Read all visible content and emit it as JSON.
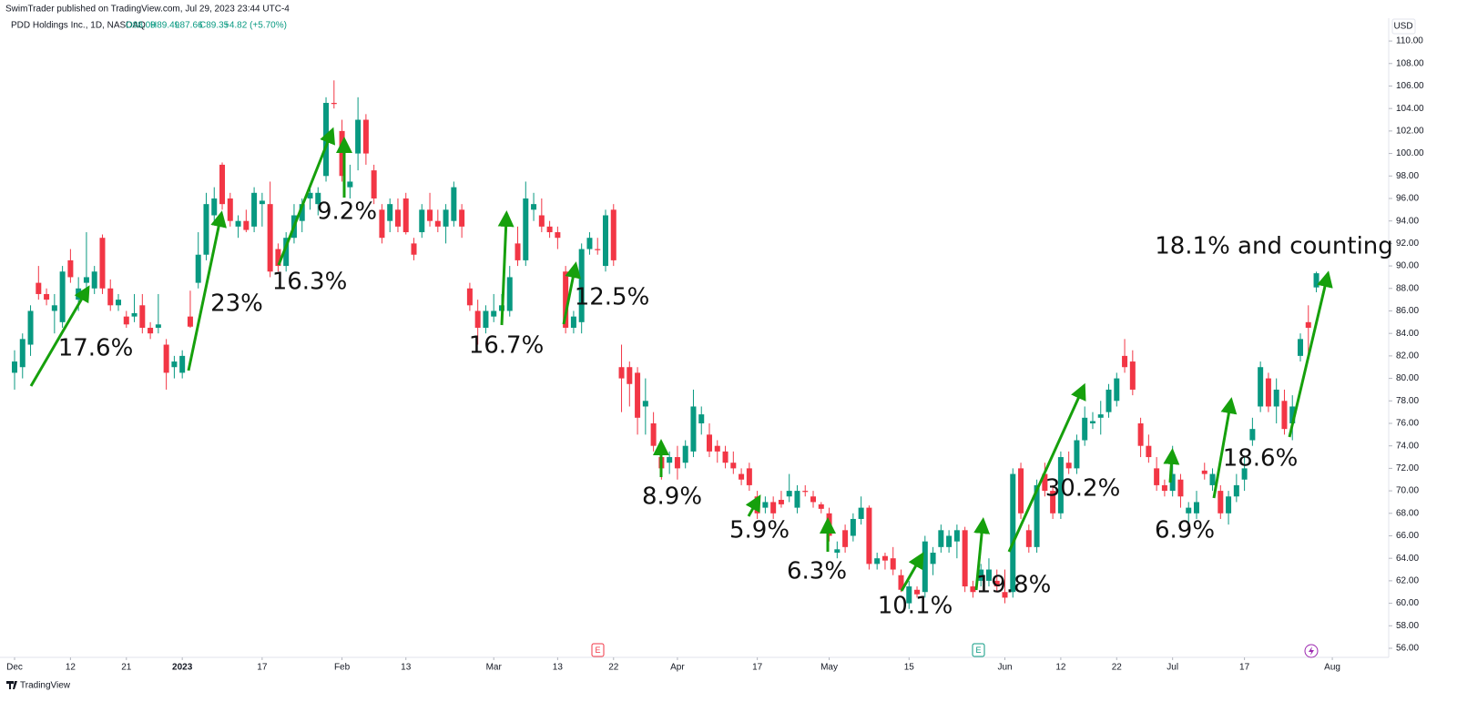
{
  "header": {
    "publisher": "SwimTrader published on TradingView.com, Jul 29, 2023 23:44 UTC-4",
    "symbol": "PDD Holdings Inc., 1D, NASDAQ",
    "quote": [
      "O88.09",
      "H89.49",
      "L87.66",
      "C89.35",
      "+4.82 (+5.70%)"
    ],
    "currency": "USD",
    "footer": "TradingView"
  },
  "chart_data": {
    "type": "candlestick",
    "up_color": "#089981",
    "down_color": "#f23645",
    "open": [
      80.5,
      81,
      83,
      88.5,
      87.5,
      86,
      85,
      90.5,
      87,
      88.5,
      88,
      92.5,
      88,
      86.5,
      85.5,
      85.5,
      86.5,
      84.5,
      84.5,
      83,
      81,
      80.5,
      85.5,
      88.5,
      91,
      94.5,
      99,
      96,
      93.5,
      94,
      93.5,
      95.5,
      95.5,
      91.5,
      90,
      92.5,
      94,
      96,
      95.5,
      98,
      104.5,
      102,
      97,
      100,
      103,
      98.5,
      95,
      94,
      95,
      96,
      92,
      93,
      95,
      94,
      93.5,
      94,
      95,
      88,
      86,
      84.5,
      85.5,
      86,
      86,
      92,
      90.5,
      95,
      94.5,
      93.5,
      93,
      89.5,
      84.5,
      85,
      91.5,
      91.5,
      90,
      95,
      81,
      81,
      80.5,
      77.5,
      76,
      73,
      72.5,
      73,
      72.5,
      73.5,
      76,
      75,
      74,
      73.5,
      72.5,
      71.5,
      72,
      69.5,
      68.5,
      69,
      69.2,
      69.5,
      68.5,
      70,
      69.5,
      68.8,
      68,
      64.5,
      66.5,
      66,
      67.5,
      68.5,
      63.5,
      64.2,
      64,
      62.5,
      60,
      61.2,
      61,
      63.5,
      65,
      65,
      65.5,
      66.5,
      61.5,
      62,
      62,
      62,
      61,
      61,
      72,
      66.5,
      65,
      71.5,
      70,
      68,
      72.5,
      72,
      74.5,
      76,
      76.5,
      77,
      78,
      82,
      81.5,
      76,
      74,
      72,
      70.5,
      70,
      71,
      68,
      68,
      71.8,
      70.5,
      70,
      68,
      69.5,
      71,
      74.5,
      77.5,
      80,
      77.5,
      78,
      76,
      82,
      85,
      88.09
    ],
    "high": [
      82.5,
      84,
      86.5,
      90,
      88,
      87.5,
      90,
      91.5,
      89,
      93,
      90,
      92.8,
      88.8,
      87.5,
      86,
      87.5,
      87.5,
      85,
      87.5,
      83.5,
      82,
      82.5,
      87.8,
      93,
      96.5,
      97,
      99.2,
      96.5,
      94.5,
      95,
      97,
      96.5,
      97.5,
      92,
      93,
      95.5,
      96,
      97,
      97,
      105,
      106.5,
      103,
      99,
      105,
      103.5,
      99,
      95.5,
      96,
      96,
      96.5,
      92.5,
      95.5,
      96.5,
      95,
      95.5,
      97.5,
      95.5,
      88.5,
      87,
      86.5,
      87.5,
      87.5,
      90,
      93.5,
      97.5,
      96.5,
      96,
      94,
      93.5,
      90,
      86,
      92,
      93,
      92.5,
      95,
      95.5,
      83,
      81.5,
      81,
      80,
      77,
      73.5,
      73.5,
      74,
      74.5,
      79,
      77.5,
      76,
      74.5,
      74,
      73.5,
      72,
      72.5,
      70,
      69.5,
      69.5,
      70,
      71.5,
      70.5,
      70.5,
      70,
      69,
      68.5,
      65.5,
      67,
      68,
      69.5,
      68.7,
      64.5,
      64.5,
      65,
      63,
      62,
      61.5,
      66,
      65,
      67,
      66.5,
      67,
      66.8,
      62,
      63.5,
      64,
      63,
      63,
      72,
      72.5,
      67,
      71,
      72.5,
      70.5,
      73.5,
      73.5,
      75,
      77.5,
      77,
      78,
      79.5,
      80.5,
      83.5,
      82.5,
      76.5,
      75,
      73,
      71,
      74,
      71.5,
      69,
      70,
      72.5,
      72,
      70.5,
      70,
      71.5,
      73,
      76.5,
      81.5,
      80.5,
      80,
      79,
      78.5,
      84,
      86.5,
      89.49
    ],
    "low": [
      79,
      80,
      82,
      87,
      86.5,
      84,
      84.5,
      88.5,
      86,
      87.5,
      87.5,
      87.5,
      86,
      86,
      84.5,
      85,
      84,
      83.5,
      84,
      79,
      80,
      80,
      84.5,
      88,
      90.5,
      94,
      95,
      93.5,
      92.5,
      93,
      93,
      93.5,
      89,
      89.5,
      89.5,
      92,
      93,
      95,
      94.5,
      97.5,
      104,
      97.5,
      96,
      98.5,
      99,
      95.5,
      92,
      93,
      93,
      92.8,
      90.5,
      92.5,
      93.5,
      93,
      92,
      93.5,
      92.5,
      86,
      83,
      84,
      85,
      85.5,
      85.5,
      90,
      90,
      94,
      93,
      92.5,
      91.5,
      84,
      84,
      84,
      91,
      91,
      89.5,
      90,
      77,
      77.5,
      75,
      75,
      73.5,
      71,
      71.5,
      71,
      72,
      73,
      75,
      73,
      72.5,
      72,
      71.5,
      70.5,
      70,
      67.5,
      68,
      67.5,
      68.5,
      69,
      68,
      69.5,
      68.5,
      68,
      65.5,
      64,
      64.5,
      65.5,
      67,
      63,
      63,
      63,
      62.5,
      61,
      59.5,
      60.5,
      60.5,
      62.5,
      64.5,
      64.5,
      64,
      61,
      60.5,
      61.5,
      61.5,
      61,
      60,
      60.5,
      67.5,
      64.5,
      64.5,
      69.5,
      67.5,
      67.5,
      71.5,
      71.5,
      74,
      75.5,
      75,
      76.5,
      77.5,
      80.5,
      78.5,
      73,
      72.5,
      70,
      69.5,
      69.5,
      68.5,
      66.5,
      67.5,
      71,
      70,
      67.5,
      67,
      69,
      70,
      74,
      77,
      77,
      76,
      75,
      74.5,
      81.5,
      82,
      87.66
    ],
    "close": [
      81.5,
      83.5,
      86,
      87.5,
      87,
      86.5,
      89.5,
      89,
      88,
      89,
      89.5,
      88,
      86.5,
      87,
      84.8,
      85.8,
      84.5,
      84,
      84.8,
      80.5,
      81.5,
      82,
      84.6,
      91,
      95.5,
      96,
      95.5,
      94,
      94,
      93.2,
      96.5,
      95.8,
      89.5,
      90,
      92.5,
      94.5,
      95.5,
      96.5,
      96.5,
      104.5,
      104.4,
      98,
      97.5,
      103,
      100,
      96,
      92.5,
      95.5,
      93.5,
      93,
      91,
      95,
      94,
      93.5,
      95,
      97,
      93.5,
      86.5,
      84.5,
      86,
      86,
      86.5,
      89,
      90.5,
      96,
      95.5,
      93.5,
      93,
      92.5,
      84.5,
      85.5,
      91.5,
      92.5,
      91.4,
      94.5,
      90.5,
      80,
      79.5,
      76.5,
      78,
      74,
      72,
      73,
      72,
      74,
      77.5,
      76.8,
      73.5,
      73.5,
      72.5,
      72,
      71,
      70.5,
      68,
      69,
      68,
      68.8,
      70,
      70,
      69.9,
      69,
      68.4,
      66,
      64.8,
      65,
      67.5,
      68.5,
      63.5,
      64,
      63.8,
      63,
      61.2,
      61.5,
      60.8,
      65.5,
      64.5,
      66.5,
      66,
      66.5,
      61.5,
      61,
      63,
      63,
      61.5,
      60.5,
      71.5,
      68,
      65,
      70.5,
      70,
      68,
      73,
      72,
      74.5,
      76.5,
      76.2,
      76.8,
      79,
      80,
      81,
      79,
      74,
      73,
      70.5,
      70,
      71.5,
      69.5,
      68.5,
      69,
      71.5,
      71.5,
      68,
      69.5,
      70.5,
      72,
      75.5,
      81,
      77.5,
      79,
      75.5,
      77.5,
      83.5,
      84.5,
      89.35
    ],
    "xlim": [
      -1.824,
      172.06
    ],
    "xticks": [
      {
        "value": 0,
        "label": "Dec"
      },
      {
        "value": 7,
        "label": "12"
      },
      {
        "value": 14,
        "label": "21"
      },
      {
        "value": 21,
        "label": "2023"
      },
      {
        "value": 31,
        "label": "17"
      },
      {
        "value": 41,
        "label": "Feb"
      },
      {
        "value": 49,
        "label": "13"
      },
      {
        "value": 60,
        "label": "Mar"
      },
      {
        "value": 68,
        "label": "13"
      },
      {
        "value": 75,
        "label": "22"
      },
      {
        "value": 83,
        "label": "Apr"
      },
      {
        "value": 93,
        "label": "17"
      },
      {
        "value": 102,
        "label": "May"
      },
      {
        "value": 112,
        "label": "15"
      },
      {
        "value": 124,
        "label": "Jun"
      },
      {
        "value": 131,
        "label": "12"
      },
      {
        "value": 138,
        "label": "22"
      },
      {
        "value": 145,
        "label": "Jul"
      },
      {
        "value": 154,
        "label": "17"
      },
      {
        "value": 165,
        "label": "Aug"
      }
    ],
    "ylim": [
      55.19,
      112.03
    ],
    "yticks": [
      {
        "value": 56,
        "label": "56.00"
      },
      {
        "value": 58,
        "label": "58.00"
      },
      {
        "value": 60,
        "label": "60.00"
      },
      {
        "value": 62,
        "label": "62.00"
      },
      {
        "value": 64,
        "label": "64.00"
      },
      {
        "value": 66,
        "label": "66.00"
      },
      {
        "value": 68,
        "label": "68.00"
      },
      {
        "value": 70,
        "label": "70.00"
      },
      {
        "value": 72,
        "label": "72.00"
      },
      {
        "value": 74,
        "label": "74.00"
      },
      {
        "value": 76,
        "label": "76.00"
      },
      {
        "value": 78,
        "label": "78.00"
      },
      {
        "value": 80,
        "label": "80.00"
      },
      {
        "value": 82,
        "label": "82.00"
      },
      {
        "value": 84,
        "label": "84.00"
      },
      {
        "value": 86,
        "label": "86.00"
      },
      {
        "value": 88,
        "label": "88.00"
      },
      {
        "value": 90,
        "label": "90.00"
      },
      {
        "value": 92,
        "label": "92.00"
      },
      {
        "value": 94,
        "label": "94.00"
      },
      {
        "value": 96,
        "label": "96.00"
      },
      {
        "value": 98,
        "label": "98.00"
      },
      {
        "value": 100,
        "label": "100.00"
      },
      {
        "value": 102,
        "label": "102.00"
      },
      {
        "value": 104,
        "label": "104.00"
      },
      {
        "value": 106,
        "label": "106.00"
      },
      {
        "value": 108,
        "label": "108.00"
      },
      {
        "value": 110,
        "label": "110.00"
      }
    ],
    "grid": false,
    "annotations": [
      "17.6%",
      "23%",
      "16.3%",
      "9.2%",
      "16.7%",
      "12.5%",
      "8.9%",
      "5.9%",
      "6.3%",
      "10.1%",
      "19.8%",
      "30.2%",
      "6.9%",
      "18.6%",
      "18.1% and counting"
    ],
    "events": [
      "E",
      "E"
    ]
  }
}
